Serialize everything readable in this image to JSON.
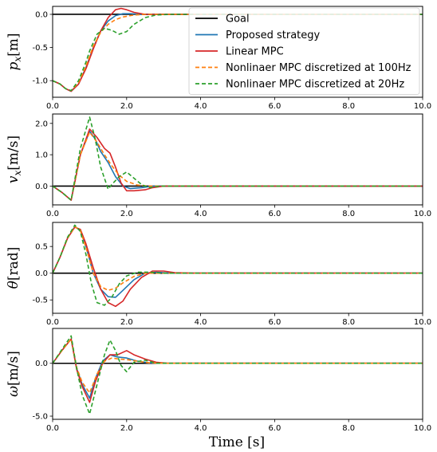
{
  "chart_data": {
    "type": "line",
    "xlabel": "Time [s]",
    "xlim": [
      0,
      10
    ],
    "x_ticks": [
      "0.0",
      "2.0",
      "4.0",
      "6.0",
      "8.0",
      "10.0"
    ],
    "legend": {
      "placement": "inside-top-right of first panel"
    },
    "series_styles": [
      {
        "name": "Goal",
        "color": "#000000",
        "dash": "solid"
      },
      {
        "name": "Proposed strategy",
        "color": "#1f77b4",
        "dash": "solid"
      },
      {
        "name": "Linear MPC",
        "color": "#d62728",
        "dash": "solid"
      },
      {
        "name": "Nonlinaer MPC discretized at 100Hz",
        "color": "#ff7f0e",
        "dash": "dashed"
      },
      {
        "name": "Nonlinaer MPC discretized at 20Hz",
        "color": "#2ca02c",
        "dash": "dashed"
      }
    ],
    "panels": [
      {
        "ylabel_base": "p",
        "ylabel_sub": "x",
        "ylabel_unit": "[m]",
        "ylim": [
          -1.25,
          0.12
        ],
        "y_ticks": [
          {
            "v": 0,
            "t": "0.0"
          },
          {
            "v": -0.5,
            "t": "-0.5"
          },
          {
            "v": -1.0,
            "t": "-1.0"
          }
        ],
        "goal": 0,
        "series": [
          {
            "name": "Proposed strategy",
            "x": [
              0,
              0.2,
              0.35,
              0.5,
              0.7,
              0.9,
              1.1,
              1.3,
              1.5,
              1.7,
              1.9,
              2.1,
              2.4,
              2.8,
              3.2,
              10
            ],
            "y": [
              -1.0,
              -1.05,
              -1.12,
              -1.16,
              -1.05,
              -0.8,
              -0.5,
              -0.25,
              -0.1,
              -0.02,
              0.01,
              0.01,
              0.0,
              0.0,
              0.0,
              0.0
            ]
          },
          {
            "name": "Linear MPC",
            "x": [
              0,
              0.2,
              0.35,
              0.5,
              0.7,
              0.9,
              1.1,
              1.3,
              1.5,
              1.7,
              1.85,
              2.0,
              2.2,
              2.5,
              2.8,
              3.2,
              10
            ],
            "y": [
              -1.0,
              -1.05,
              -1.12,
              -1.16,
              -1.05,
              -0.82,
              -0.52,
              -0.25,
              -0.05,
              0.07,
              0.09,
              0.07,
              0.03,
              0.0,
              0.0,
              0.0,
              0.0
            ]
          },
          {
            "name": "Nonlinaer MPC discretized at 100Hz",
            "x": [
              0,
              0.2,
              0.35,
              0.5,
              0.7,
              0.9,
              1.1,
              1.3,
              1.5,
              1.7,
              1.9,
              2.2,
              2.5,
              2.9,
              3.3,
              10
            ],
            "y": [
              -1.0,
              -1.05,
              -1.12,
              -1.15,
              -1.03,
              -0.78,
              -0.48,
              -0.27,
              -0.15,
              -0.08,
              -0.04,
              -0.01,
              0.0,
              0.0,
              0.0,
              0.0
            ]
          },
          {
            "name": "Nonlinaer MPC discretized at 20Hz",
            "x": [
              0,
              0.2,
              0.35,
              0.5,
              0.7,
              0.9,
              1.0,
              1.2,
              1.4,
              1.6,
              1.8,
              2.0,
              2.2,
              2.5,
              2.8,
              3.2,
              10
            ],
            "y": [
              -1.0,
              -1.05,
              -1.12,
              -1.15,
              -1.0,
              -0.72,
              -0.55,
              -0.3,
              -0.21,
              -0.24,
              -0.3,
              -0.26,
              -0.15,
              -0.05,
              -0.01,
              0.0,
              0.0
            ]
          }
        ]
      },
      {
        "ylabel_base": "v",
        "ylabel_sub": "x",
        "ylabel_unit": "[m/s]",
        "ylim": [
          -0.6,
          2.3
        ],
        "y_ticks": [
          {
            "v": 2,
            "t": "2.0"
          },
          {
            "v": 1,
            "t": "1.0"
          },
          {
            "v": 0,
            "t": "0.0"
          }
        ],
        "goal": 0,
        "series": [
          {
            "name": "Proposed strategy",
            "x": [
              0,
              0.25,
              0.5,
              0.75,
              1.0,
              1.15,
              1.3,
              1.5,
              1.7,
              1.9,
              2.1,
              2.4,
              2.7,
              3.0,
              3.5,
              10
            ],
            "y": [
              0,
              -0.2,
              -0.45,
              1.0,
              1.75,
              1.5,
              1.1,
              0.75,
              0.3,
              0.0,
              -0.08,
              -0.05,
              0.0,
              0.0,
              0.0,
              0.0
            ]
          },
          {
            "name": "Linear MPC",
            "x": [
              0,
              0.25,
              0.5,
              0.75,
              1.0,
              1.2,
              1.4,
              1.55,
              1.7,
              1.85,
              2.0,
              2.2,
              2.5,
              2.7,
              3.0,
              3.5,
              10
            ],
            "y": [
              0,
              -0.2,
              -0.45,
              1.0,
              1.82,
              1.55,
              1.2,
              1.05,
              0.6,
              0.1,
              -0.15,
              -0.15,
              -0.12,
              -0.05,
              0.0,
              0.0,
              0.0
            ]
          },
          {
            "name": "Nonlinaer MPC discretized at 100Hz",
            "x": [
              0,
              0.25,
              0.5,
              0.75,
              1.0,
              1.2,
              1.4,
              1.6,
              1.8,
              2.0,
              2.3,
              2.6,
              3.0,
              3.5,
              10
            ],
            "y": [
              0,
              -0.2,
              -0.45,
              1.0,
              1.72,
              1.4,
              1.0,
              0.65,
              0.35,
              0.15,
              0.03,
              0.0,
              0.0,
              0.0,
              0.0
            ]
          },
          {
            "name": "Nonlinaer MPC discretized at 20Hz",
            "x": [
              0,
              0.25,
              0.5,
              0.75,
              1.0,
              1.15,
              1.3,
              1.5,
              1.6,
              1.8,
              2.0,
              2.2,
              2.4,
              2.6,
              2.9,
              3.2,
              10
            ],
            "y": [
              0,
              -0.2,
              -0.45,
              1.2,
              2.2,
              1.5,
              0.6,
              -0.1,
              0.05,
              0.3,
              0.45,
              0.25,
              0.05,
              -0.05,
              0.0,
              0.0,
              0.0
            ]
          }
        ]
      },
      {
        "ylabel_base": "θ",
        "ylabel_sub": "",
        "ylabel_unit": "[rad]",
        "ylim": [
          -0.75,
          0.95
        ],
        "y_ticks": [
          {
            "v": 0.5,
            "t": "0.5"
          },
          {
            "v": 0,
            "t": "0.0"
          },
          {
            "v": -0.5,
            "t": "-0.5"
          }
        ],
        "goal": 0,
        "series": [
          {
            "name": "Proposed strategy",
            "x": [
              0,
              0.2,
              0.4,
              0.6,
              0.75,
              0.9,
              1.1,
              1.3,
              1.5,
              1.7,
              1.9,
              2.2,
              2.5,
              2.8,
              3.2,
              3.7,
              10
            ],
            "y": [
              0,
              0.3,
              0.65,
              0.87,
              0.8,
              0.5,
              0.0,
              -0.3,
              -0.44,
              -0.45,
              -0.32,
              -0.12,
              0.0,
              0.02,
              0.0,
              0.0,
              0.0
            ]
          },
          {
            "name": "Linear MPC",
            "x": [
              0,
              0.2,
              0.4,
              0.6,
              0.75,
              0.9,
              1.1,
              1.3,
              1.5,
              1.7,
              1.9,
              2.1,
              2.4,
              2.7,
              3.0,
              3.3,
              3.8,
              10
            ],
            "y": [
              0,
              0.3,
              0.65,
              0.86,
              0.82,
              0.55,
              0.1,
              -0.3,
              -0.55,
              -0.62,
              -0.52,
              -0.3,
              -0.08,
              0.04,
              0.04,
              0.01,
              0.0,
              0.0
            ]
          },
          {
            "name": "Nonlinaer MPC discretized at 100Hz",
            "x": [
              0,
              0.2,
              0.4,
              0.6,
              0.75,
              0.9,
              1.1,
              1.3,
              1.5,
              1.7,
              1.9,
              2.2,
              2.5,
              2.9,
              3.3,
              10
            ],
            "y": [
              0,
              0.3,
              0.65,
              0.87,
              0.8,
              0.48,
              0.0,
              -0.25,
              -0.32,
              -0.28,
              -0.18,
              -0.06,
              0.0,
              0.0,
              0.0,
              0.0
            ]
          },
          {
            "name": "Nonlinaer MPC discretized at 20Hz",
            "x": [
              0,
              0.2,
              0.4,
              0.6,
              0.75,
              0.9,
              1.05,
              1.2,
              1.4,
              1.6,
              1.8,
              2.0,
              2.3,
              2.6,
              3.0,
              3.4,
              10
            ],
            "y": [
              0,
              0.3,
              0.67,
              0.9,
              0.78,
              0.35,
              -0.2,
              -0.55,
              -0.6,
              -0.45,
              -0.2,
              -0.05,
              0.02,
              0.02,
              0.0,
              0.0,
              0.0
            ]
          }
        ]
      },
      {
        "ylabel_base": "ω",
        "ylabel_sub": "",
        "ylabel_unit": "[m/s]",
        "ylim": [
          -5.3,
          3.3
        ],
        "y_ticks": [
          {
            "v": 0,
            "t": "0.0"
          },
          {
            "v": -5,
            "t": "-5.0"
          }
        ],
        "goal": 0,
        "series": [
          {
            "name": "Proposed strategy",
            "x": [
              0,
              0.25,
              0.5,
              0.65,
              0.8,
              1.0,
              1.15,
              1.35,
              1.55,
              1.75,
              2.0,
              2.3,
              2.6,
              2.9,
              3.2,
              10
            ],
            "y": [
              0,
              1.2,
              2.3,
              -0.5,
              -2.0,
              -3.3,
              -1.5,
              0.2,
              0.8,
              0.6,
              0.5,
              0.2,
              0.05,
              0.0,
              0.0,
              0.0
            ]
          },
          {
            "name": "Linear MPC",
            "x": [
              0,
              0.25,
              0.5,
              0.65,
              0.8,
              1.0,
              1.15,
              1.35,
              1.55,
              1.75,
              2.0,
              2.2,
              2.5,
              2.8,
              3.1,
              3.4,
              10
            ],
            "y": [
              0,
              1.2,
              2.3,
              -0.6,
              -2.2,
              -3.7,
              -1.8,
              0.0,
              0.8,
              0.8,
              1.2,
              0.8,
              0.4,
              0.1,
              0.0,
              0.0,
              0.0
            ]
          },
          {
            "name": "Nonlinaer MPC discretized at 100Hz",
            "x": [
              0,
              0.25,
              0.5,
              0.65,
              0.8,
              1.0,
              1.2,
              1.4,
              1.6,
              1.8,
              2.0,
              2.3,
              2.6,
              3.0,
              3.4,
              10
            ],
            "y": [
              0,
              1.2,
              2.3,
              -0.4,
              -1.8,
              -2.8,
              -1.0,
              0.2,
              0.5,
              0.4,
              0.35,
              0.2,
              0.05,
              0.0,
              0.0,
              0.0
            ]
          },
          {
            "name": "Nonlinaer MPC discretized at 20Hz",
            "x": [
              0,
              0.25,
              0.5,
              0.65,
              0.8,
              1.0,
              1.2,
              1.4,
              1.55,
              1.7,
              1.85,
              2.0,
              2.2,
              2.5,
              2.8,
              3.2,
              10
            ],
            "y": [
              0,
              1.3,
              2.6,
              -0.5,
              -3.0,
              -4.8,
              -2.0,
              0.8,
              2.2,
              1.2,
              -0.2,
              -0.8,
              0.1,
              0.3,
              0.0,
              0.0,
              0.0
            ]
          }
        ]
      }
    ]
  }
}
